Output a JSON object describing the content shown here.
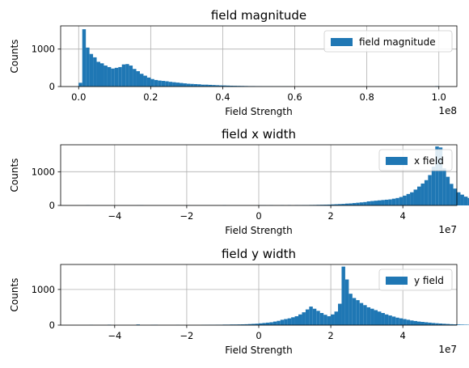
{
  "chart_data": [
    {
      "type": "bar",
      "title": "field magnitude",
      "xlabel": "Field Strength",
      "ylabel": "Counts",
      "x_scale_note": "1e8",
      "xlim": [
        -0.05,
        1.05
      ],
      "ylim": [
        0,
        1620
      ],
      "xticks": [
        0.0,
        0.2,
        0.4,
        0.6,
        0.8,
        1.0
      ],
      "xtick_labels": [
        "0.0",
        "0.2",
        "0.4",
        "0.6",
        "0.8",
        "1.0"
      ],
      "yticks": [
        0,
        1000
      ],
      "ytick_labels": [
        "0",
        "1000"
      ],
      "grid": true,
      "legend": "top-right",
      "color": "#1f77b4",
      "bin_start": 0.0,
      "bin_width": 0.01,
      "series": [
        {
          "name": "field magnitude",
          "values": [
            100,
            1530,
            1040,
            870,
            780,
            660,
            620,
            560,
            520,
            480,
            500,
            520,
            590,
            600,
            560,
            470,
            410,
            340,
            290,
            240,
            200,
            175,
            160,
            150,
            140,
            125,
            115,
            105,
            95,
            85,
            75,
            70,
            65,
            60,
            50,
            50,
            45,
            40,
            35,
            30,
            28,
            25,
            22,
            20,
            18,
            16,
            14,
            12,
            12,
            10,
            10,
            8,
            8,
            7,
            6,
            6,
            5,
            5,
            4,
            0,
            0,
            0,
            0,
            0,
            0,
            0,
            0,
            0,
            0,
            0,
            0,
            0,
            0,
            0,
            0,
            0,
            0,
            0,
            0,
            0,
            0,
            0,
            0,
            0,
            0,
            0,
            0,
            0,
            0,
            0,
            0,
            0,
            0,
            0,
            0,
            0,
            0,
            0,
            0,
            12
          ]
        }
      ]
    },
    {
      "type": "bar",
      "title": "field x width",
      "xlabel": "Field Strength",
      "ylabel": "Counts",
      "x_scale_note": "1e7",
      "xlim": [
        -5.5,
        5.5
      ],
      "ylim": [
        0,
        1800
      ],
      "xticks": [
        -4,
        -2,
        0,
        2,
        4
      ],
      "xtick_labels": [
        "−4",
        "−2",
        "0",
        "2",
        "4"
      ],
      "yticks": [
        0,
        1000
      ],
      "ytick_labels": [
        "0",
        "1000"
      ],
      "grid": true,
      "legend": "top-right",
      "color": "#1f77b4",
      "bin_start": -5.0,
      "bin_width": 0.1,
      "series": [
        {
          "name": "x field",
          "values": [
            0,
            0,
            8,
            0,
            0,
            0,
            0,
            0,
            0,
            0,
            0,
            0,
            0,
            0,
            0,
            0,
            4,
            6,
            0,
            0,
            0,
            0,
            0,
            0,
            0,
            0,
            0,
            0,
            0,
            0,
            4,
            0,
            0,
            0,
            0,
            0,
            0,
            0,
            0,
            0,
            6,
            0,
            0,
            0,
            0,
            0,
            0,
            0,
            0,
            0,
            4,
            4,
            0,
            6,
            0,
            0,
            8,
            0,
            10,
            0,
            10,
            8,
            12,
            12,
            14,
            15,
            18,
            20,
            22,
            25,
            30,
            35,
            40,
            45,
            55,
            60,
            70,
            80,
            90,
            100,
            120,
            130,
            140,
            150,
            160,
            170,
            180,
            200,
            220,
            250,
            290,
            340,
            390,
            470,
            560,
            650,
            750,
            900,
            1150,
            1750,
            1720,
            1100,
            850,
            640,
            500,
            390,
            320,
            260,
            220,
            190,
            160,
            140,
            120,
            100,
            90,
            80,
            70,
            60,
            50,
            45,
            40,
            32,
            28,
            24,
            20,
            18,
            16,
            14,
            12,
            10,
            8,
            8,
            6,
            6,
            4,
            4,
            4,
            4,
            0,
            4,
            0,
            0,
            0,
            0,
            0,
            0,
            0,
            0,
            4,
            0,
            0,
            0,
            0,
            0,
            0,
            0,
            0,
            0,
            0,
            0,
            0,
            0,
            0,
            0,
            0,
            0,
            0,
            0,
            0,
            0,
            0,
            0,
            0,
            0,
            0,
            0,
            0,
            0,
            0,
            0,
            0,
            0,
            0,
            0,
            0,
            0,
            0,
            0,
            0,
            0,
            0,
            0,
            0,
            0,
            0,
            0,
            0,
            0,
            0
          ]
        }
      ]
    },
    {
      "type": "bar",
      "title": "field y width",
      "xlabel": "Field Strength",
      "ylabel": "Counts",
      "x_scale_note": "1e7",
      "xlim": [
        -5.5,
        5.5
      ],
      "ylim": [
        0,
        1700
      ],
      "xticks": [
        -4,
        -2,
        0,
        2,
        4
      ],
      "xtick_labels": [
        "−4",
        "−2",
        "0",
        "2",
        "4"
      ],
      "yticks": [
        0,
        1000
      ],
      "ytick_labels": [
        "0",
        "1000"
      ],
      "grid": true,
      "legend": "top-right",
      "color": "#1f77b4",
      "bin_start": -5.0,
      "bin_width": 0.1,
      "series": [
        {
          "name": "y field",
          "values": [
            0,
            0,
            0,
            6,
            0,
            0,
            0,
            0,
            12,
            0,
            0,
            0,
            0,
            0,
            0,
            0,
            18,
            0,
            0,
            0,
            8,
            10,
            0,
            0,
            0,
            0,
            0,
            6,
            0,
            0,
            0,
            0,
            0,
            0,
            6,
            8,
            10,
            10,
            12,
            12,
            15,
            15,
            18,
            18,
            20,
            22,
            25,
            30,
            35,
            40,
            50,
            60,
            70,
            80,
            100,
            120,
            150,
            170,
            190,
            220,
            250,
            300,
            360,
            440,
            520,
            460,
            400,
            340,
            290,
            250,
            300,
            380,
            600,
            1640,
            1280,
            880,
            760,
            700,
            620,
            560,
            500,
            460,
            420,
            380,
            340,
            300,
            270,
            240,
            210,
            190,
            170,
            150,
            130,
            115,
            100,
            90,
            80,
            70,
            60,
            52,
            45,
            38,
            32,
            26,
            22,
            18,
            15,
            12,
            10,
            8,
            8,
            6,
            6,
            4,
            4,
            0,
            4,
            0,
            0,
            0,
            0,
            0,
            0,
            0,
            0,
            0,
            0,
            0,
            0,
            0,
            0,
            0,
            0,
            0,
            0,
            0,
            0,
            0,
            0,
            0,
            0,
            0,
            0,
            0,
            0,
            0,
            0,
            0,
            0,
            0
          ]
        }
      ]
    }
  ]
}
